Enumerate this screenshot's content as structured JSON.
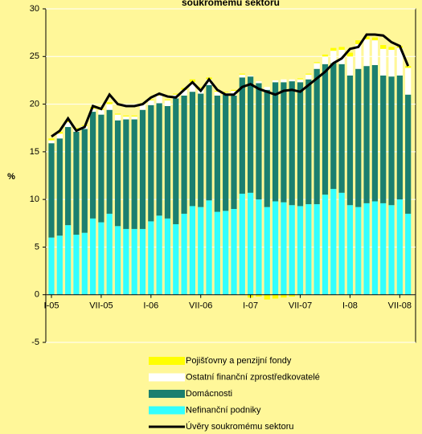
{
  "chart_data": {
    "type": "stacked-bar-line",
    "title": "soukromému sektoru",
    "y_label": "%",
    "categories": [
      "I-05",
      null,
      null,
      null,
      null,
      null,
      "VII-05",
      null,
      null,
      null,
      null,
      null,
      "I-06",
      null,
      null,
      null,
      null,
      null,
      "VII-06",
      null,
      null,
      null,
      null,
      null,
      "I-07",
      null,
      null,
      null,
      null,
      null,
      "VII-07",
      null,
      null,
      null,
      null,
      null,
      "I-08",
      null,
      null,
      null,
      null,
      null,
      "VII-08",
      null
    ],
    "series": [
      {
        "name": "Pojišťovny a penzijní fondy",
        "color": "#ffff00",
        "kind": "bar",
        "values": [
          0.2,
          0.2,
          0.2,
          0.1,
          0.1,
          0.2,
          0.1,
          0.2,
          0.1,
          0.1,
          0.1,
          0.1,
          0.1,
          0.2,
          0.1,
          0.1,
          0.2,
          0.3,
          0.1,
          0.2,
          0.1,
          0.1,
          0.1,
          0.1,
          -0.3,
          -0.2,
          -0.5,
          -0.4,
          -0.3,
          -0.2,
          0.1,
          0.1,
          0.1,
          0.2,
          0.3,
          0.3,
          0.4,
          0.4,
          0.3,
          0.3,
          0.4,
          0.3,
          0.2,
          0.2
        ]
      },
      {
        "name": "Ostatní finanční zprostředkovatelé",
        "color": "#ffffff",
        "kind": "bar",
        "values": [
          0.3,
          0.5,
          0.5,
          0.3,
          0.3,
          0.3,
          0.5,
          0.6,
          0.6,
          0.3,
          0.3,
          0.6,
          0.5,
          0.8,
          0.6,
          0.4,
          0.6,
          1.0,
          0.6,
          0.6,
          0.4,
          0.2,
          0.5,
          0.3,
          0.1,
          0.2,
          0.3,
          0.2,
          0.3,
          0.2,
          0.3,
          0.5,
          0.6,
          0.8,
          1.3,
          1.5,
          2.0,
          2.6,
          2.8,
          2.6,
          2.8,
          2.8,
          2.9,
          2.8
        ]
      },
      {
        "name": "Domácnosti",
        "color": "#1b7f6f",
        "kind": "bar",
        "values": [
          9.9,
          10.2,
          10.3,
          10.8,
          10.9,
          11.2,
          11.3,
          10.9,
          11.1,
          11.5,
          11.5,
          12.5,
          12.2,
          11.8,
          11.8,
          13.2,
          12.4,
          12.0,
          11.9,
          12.1,
          12.2,
          12.2,
          11.9,
          12.2,
          12.2,
          12.2,
          12.3,
          12.5,
          12.6,
          13.0,
          13.0,
          13.1,
          14.2,
          13.7,
          13.2,
          13.5,
          13.6,
          14.5,
          14.4,
          14.3,
          13.4,
          13.5,
          13.0,
          12.5
        ]
      },
      {
        "name": "Nefinanční podniky",
        "color": "#33ffff",
        "kind": "bar",
        "values": [
          6.0,
          6.2,
          7.3,
          6.3,
          6.5,
          8.0,
          7.6,
          8.5,
          7.2,
          6.9,
          6.9,
          6.9,
          7.7,
          8.3,
          8.0,
          7.4,
          8.5,
          9.3,
          9.2,
          9.9,
          8.7,
          8.8,
          9.0,
          10.6,
          10.7,
          10.0,
          9.2,
          9.8,
          9.7,
          9.4,
          9.3,
          9.5,
          9.5,
          10.5,
          11.1,
          10.7,
          9.4,
          9.2,
          9.6,
          9.8,
          9.6,
          9.4,
          10.0,
          8.5
        ]
      },
      {
        "name": "Úvěry soukromému sektoru",
        "color": "#000000",
        "kind": "line",
        "values": [
          16.6,
          17.2,
          18.5,
          17.2,
          17.6,
          19.8,
          19.5,
          21.0,
          20.0,
          19.8,
          19.8,
          20.0,
          20.7,
          21.1,
          20.8,
          20.7,
          21.5,
          22.3,
          21.4,
          22.6,
          21.5,
          21.0,
          21.0,
          21.8,
          22.1,
          21.6,
          21.3,
          21.0,
          21.4,
          21.5,
          21.3,
          22.0,
          22.7,
          23.4,
          24.3,
          24.8,
          25.8,
          26.0,
          27.3,
          27.3,
          27.2,
          26.5,
          26.1,
          24.0
        ]
      }
    ],
    "ylim": [
      -5,
      30
    ],
    "yticks": [
      -5,
      0,
      5,
      10,
      15,
      20,
      25,
      30
    ],
    "grid": true,
    "legend": "bottom"
  }
}
